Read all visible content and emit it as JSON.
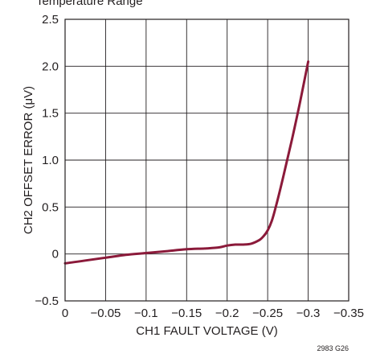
{
  "partial_title_text": "Temperature Range",
  "figure_id": "2983 G26",
  "chart_data": {
    "type": "line",
    "xlabel": "CH1 FAULT VOLTAGE (V)",
    "ylabel": "CH2 OFFSET ERROR (μV)",
    "xlim": [
      0,
      -0.35
    ],
    "ylim": [
      -0.5,
      2.5
    ],
    "x_ticks": [
      "0",
      "−0.05",
      "−0.1",
      "−0.15",
      "−0.2",
      "−0.25",
      "−0.3",
      "−0.35"
    ],
    "y_ticks": [
      "−0.5",
      "0",
      "0.5",
      "1.0",
      "1.5",
      "2.0",
      "2.5"
    ],
    "grid": true,
    "series": [
      {
        "color": "#8b1a3a",
        "x": [
          0,
          -0.025,
          -0.05,
          -0.075,
          -0.1,
          -0.125,
          -0.15,
          -0.175,
          -0.19,
          -0.2,
          -0.21,
          -0.22,
          -0.23,
          -0.24,
          -0.245,
          -0.25,
          -0.255,
          -0.26,
          -0.27,
          -0.28,
          -0.29,
          -0.3
        ],
        "y": [
          -0.1,
          -0.07,
          -0.04,
          -0.01,
          0.01,
          0.03,
          0.05,
          0.06,
          0.07,
          0.09,
          0.1,
          0.1,
          0.11,
          0.15,
          0.19,
          0.25,
          0.35,
          0.5,
          0.85,
          1.22,
          1.62,
          2.05
        ]
      }
    ]
  }
}
